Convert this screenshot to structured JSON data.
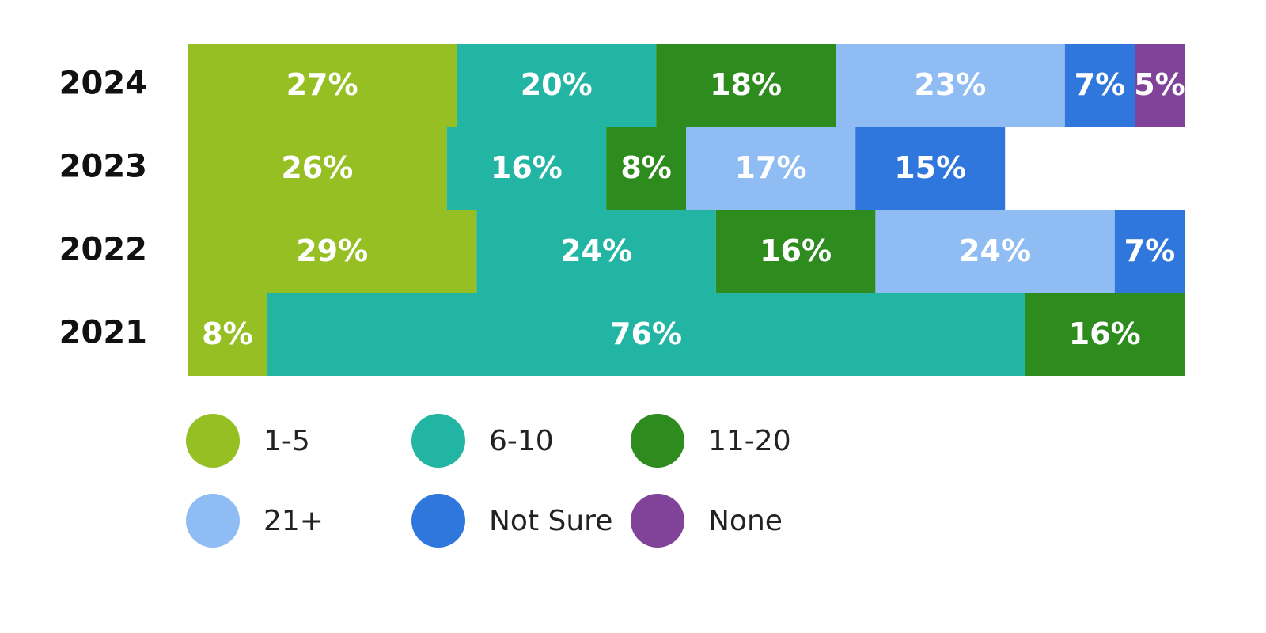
{
  "chart_data": {
    "type": "stacked-barh",
    "categories": [
      "2024",
      "2023",
      "2022",
      "2021"
    ],
    "xlim": [
      0,
      100
    ],
    "series": [
      {
        "name": "1-5",
        "color": "#95bf22",
        "values": [
          27,
          26,
          29,
          8
        ],
        "value_labels": [
          "27%",
          "26%",
          "29%",
          "8%"
        ]
      },
      {
        "name": "6-10",
        "color": "#22b5a4",
        "values": [
          20,
          16,
          24,
          76
        ],
        "value_labels": [
          "20%",
          "16%",
          "24%",
          "76%"
        ]
      },
      {
        "name": "11-20",
        "color": "#2e8b1e",
        "values": [
          18,
          8,
          16,
          16
        ],
        "value_labels": [
          "18%",
          "8%",
          "16%",
          "16%"
        ]
      },
      {
        "name": "21+",
        "color": "#8fbcf2",
        "values": [
          23,
          17,
          24,
          null
        ],
        "value_labels": [
          "23%",
          "17%",
          "24%",
          null
        ]
      },
      {
        "name": "Not Sure",
        "color": "#3077dd",
        "values": [
          7,
          15,
          7,
          null
        ],
        "value_labels": [
          "7%",
          "15%",
          "7%",
          null
        ]
      },
      {
        "name": "None",
        "color": "#814399",
        "values": [
          5,
          null,
          null,
          null
        ],
        "value_labels": [
          "5%",
          null,
          null,
          null
        ]
      }
    ]
  }
}
